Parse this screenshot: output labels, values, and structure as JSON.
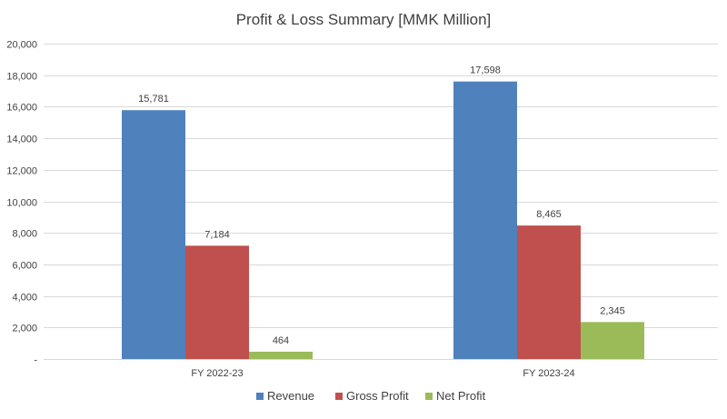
{
  "chart_data": {
    "type": "bar",
    "title": "Profit & Loss Summary [MMK Million]",
    "xlabel": "",
    "ylabel": "",
    "categories": [
      "FY 2022-23",
      "FY 2023-24"
    ],
    "series": [
      {
        "name": "Revenue",
        "values": [
          15781,
          17598
        ],
        "labels": [
          "15,781",
          "17,598"
        ],
        "color": "#4f81bd"
      },
      {
        "name": "Gross Profit",
        "values": [
          7184,
          8465
        ],
        "labels": [
          "7,184",
          "8,465"
        ],
        "color": "#c0504d"
      },
      {
        "name": "Net Profit",
        "values": [
          464,
          2345
        ],
        "labels": [
          "464",
          "2,345"
        ],
        "color": "#9bbb59"
      }
    ],
    "ylim": [
      0,
      20000
    ],
    "yticks": [
      0,
      2000,
      4000,
      6000,
      8000,
      10000,
      12000,
      14000,
      16000,
      18000,
      20000
    ],
    "ytick_labels": [
      "-",
      "2,000",
      "4,000",
      "6,000",
      "8,000",
      "10,000",
      "12,000",
      "14,000",
      "16,000",
      "18,000",
      "20,000"
    ],
    "grid": true,
    "legend_position": "bottom"
  },
  "colors": {
    "gridline": "#d9d9d9",
    "axis_text": "#404040",
    "title_text": "#404040"
  }
}
